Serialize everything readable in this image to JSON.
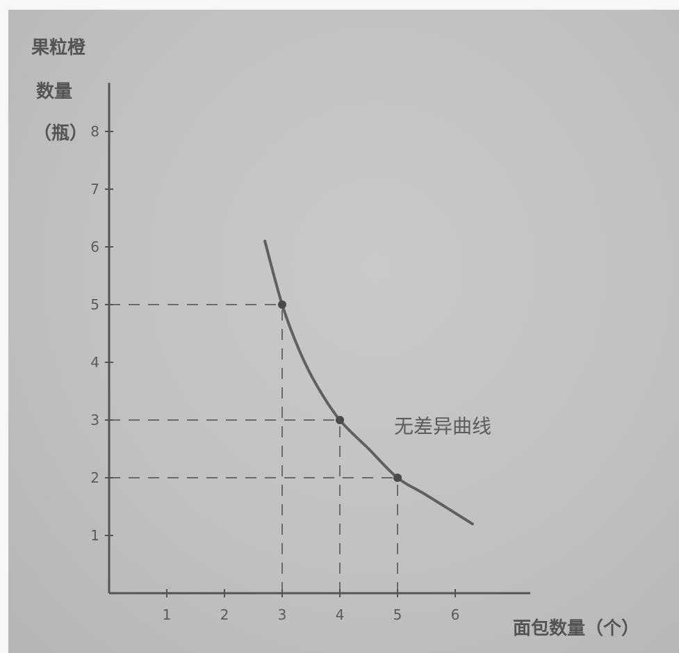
{
  "chart_data": {
    "type": "line",
    "title": "",
    "xlabel": "面包数量（个）",
    "ylabel_lines": [
      "果粒橙",
      "数量",
      "（瓶）"
    ],
    "x_ticks": [
      1,
      2,
      3,
      4,
      5,
      6
    ],
    "y_ticks": [
      1,
      2,
      3,
      4,
      5,
      6,
      7,
      8
    ],
    "xlim": [
      0,
      7
    ],
    "ylim": [
      0,
      8.6
    ],
    "series": [
      {
        "name": "无差异曲线",
        "type": "curve",
        "x": [
          2.7,
          3.0,
          3.3,
          3.6,
          4.0,
          4.5,
          5.0,
          5.5,
          6.3
        ],
        "y": [
          6.1,
          5.0,
          4.2,
          3.6,
          3.0,
          2.5,
          2.0,
          1.7,
          1.2
        ]
      }
    ],
    "points": [
      {
        "x": 3,
        "y": 5
      },
      {
        "x": 4,
        "y": 3
      },
      {
        "x": 5,
        "y": 2
      }
    ],
    "annotations": [
      {
        "text": "无差异曲线",
        "x": 5.0,
        "y": 2.9
      }
    ],
    "colors": {
      "axis": "#545454",
      "curve": "#606060",
      "dashes": "#6a6a6a",
      "point": "#4a4a4a"
    },
    "grid": false,
    "legend": "none"
  }
}
